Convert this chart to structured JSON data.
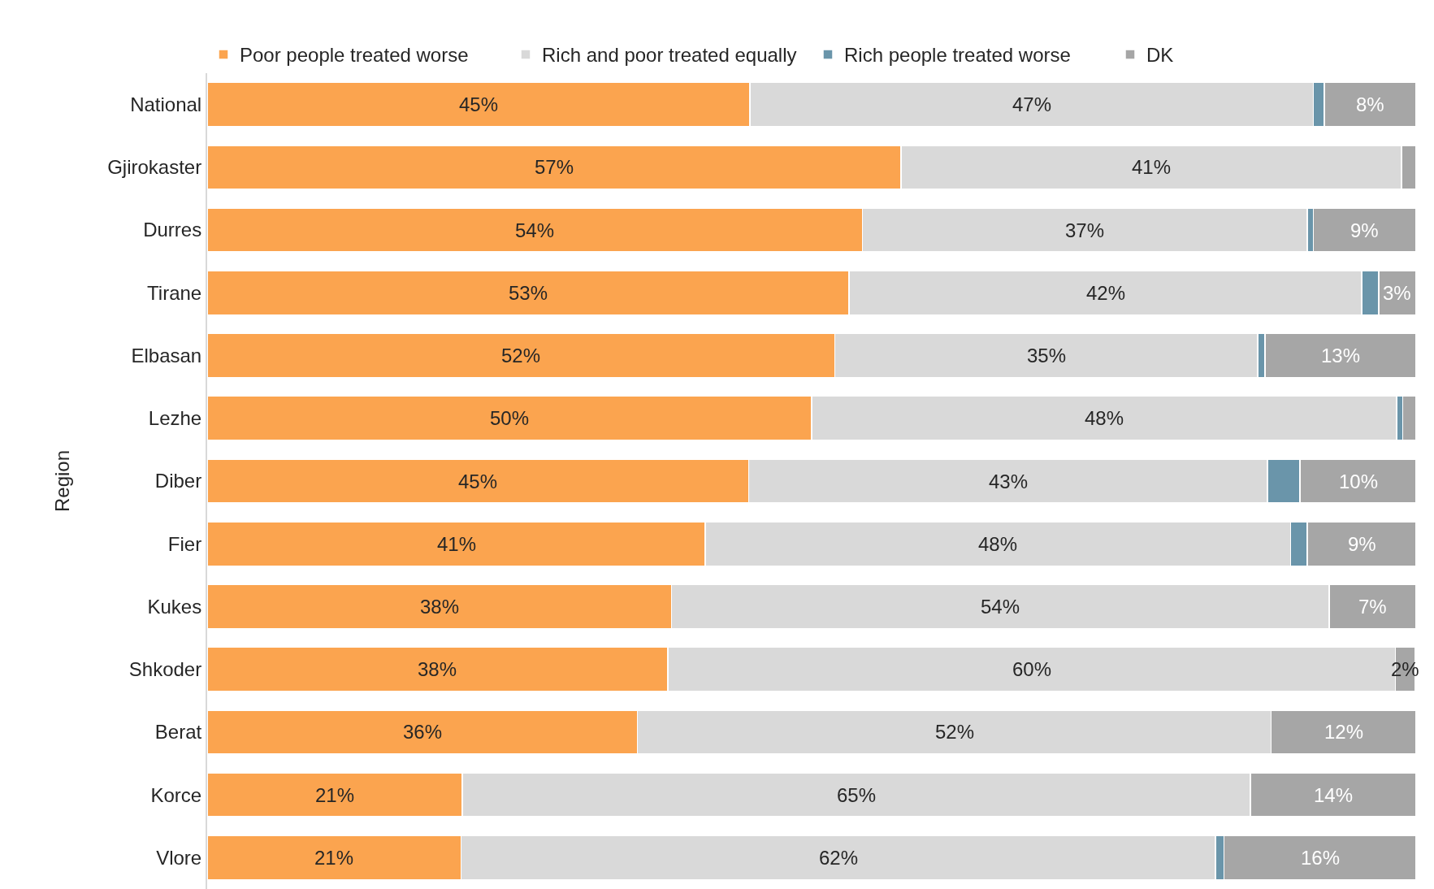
{
  "chart_data": {
    "type": "bar",
    "orientation": "horizontal",
    "stacked": true,
    "ylabel": "Region",
    "legend": "top",
    "categories": [
      "National",
      "Gjirokaster",
      "Durres",
      "Tirane",
      "Elbasan",
      "Lezhe",
      "Diber",
      "Fier",
      "Kukes",
      "Shkoder",
      "Berat",
      "Korce",
      "Vlore"
    ],
    "xlim": [
      0,
      100
    ],
    "series": [
      {
        "name": "Poor people treated worse",
        "color": "#fba44f",
        "values": [
          44.9,
          57.4,
          54.2,
          53.1,
          51.9,
          50.0,
          44.8,
          41.2,
          38.4,
          38.1,
          35.6,
          21.1,
          21.0
        ],
        "value_labels": [
          "45%",
          "57%",
          "54%",
          "53%",
          "52%",
          "50%",
          "45%",
          "41%",
          "38%",
          "38%",
          "36%",
          "21%",
          "21%"
        ]
      },
      {
        "name": "Rich and poor treated equally",
        "color": "#d9d9d9",
        "values": [
          46.6,
          41.4,
          36.8,
          42.4,
          35.0,
          48.4,
          42.9,
          48.4,
          54.4,
          60.2,
          52.4,
          65.2,
          62.4
        ],
        "value_labels": [
          "47%",
          "41%",
          "37%",
          "42%",
          "35%",
          "48%",
          "43%",
          "48%",
          "54%",
          "60%",
          "52%",
          "65%",
          "62%"
        ]
      },
      {
        "name": "Rich people treated worse",
        "color": "#6a95aa",
        "values": [
          0.9,
          0,
          0.5,
          1.4,
          0.6,
          0.5,
          2.7,
          1.4,
          0,
          0,
          0,
          0,
          0.7
        ],
        "value_labels": [
          null,
          null,
          null,
          null,
          null,
          null,
          null,
          null,
          null,
          null,
          null,
          null,
          null
        ]
      },
      {
        "name": "DK",
        "color": "#a6a6a6",
        "values": [
          7.6,
          1.2,
          8.5,
          3.1,
          12.5,
          1.1,
          9.6,
          9.0,
          7.2,
          1.6,
          12.0,
          13.7,
          15.9
        ],
        "value_labels": [
          "8%",
          null,
          "9%",
          "3%",
          "13%",
          null,
          "10%",
          "9%",
          "7%",
          "2%",
          "12%",
          "14%",
          "16%"
        ]
      }
    ]
  }
}
